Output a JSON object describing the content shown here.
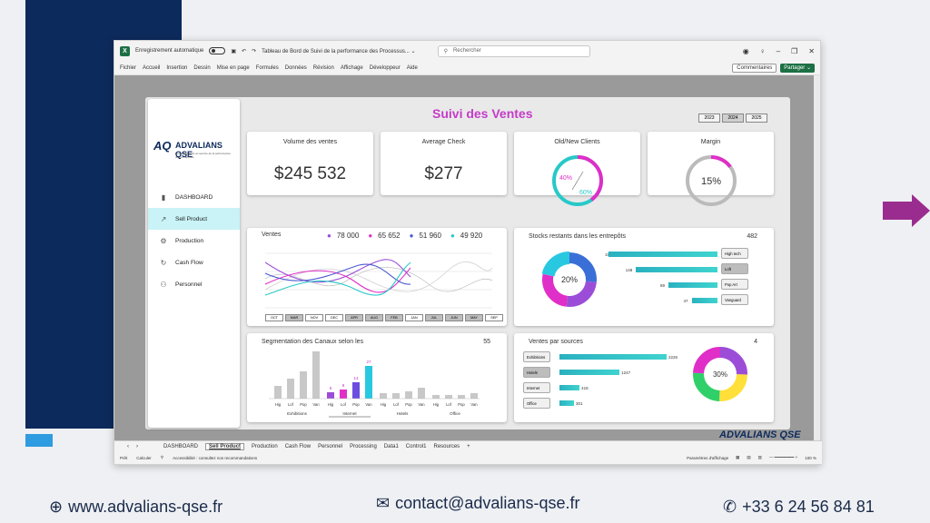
{
  "excel": {
    "autosave_label": "Enregistrement automatique",
    "file_title": "Tableau de Bord de Suivi de la performance des Processus... ⌄",
    "search_placeholder": "Rechercher",
    "menu": [
      "Fichier",
      "Accueil",
      "Insertion",
      "Dessin",
      "Mise en page",
      "Formules",
      "Données",
      "Révision",
      "Affichage",
      "Développeur",
      "Aide"
    ],
    "comments": "Commentaires",
    "share": "Partager ⌄",
    "sheet_tabs": [
      "DASHBOARD",
      "Sell Product",
      "Production",
      "Cash Flow",
      "Personnel",
      "Processing",
      "Data1",
      "Control1",
      "Resources"
    ],
    "active_tab": "Sell Product",
    "status": {
      "ready": "Prêt",
      "calc": "Calculer",
      "accessibility": "Accessibilité : consultez nos recommandations",
      "display_params": "Paramètres d'affichage",
      "zoom": "100 %"
    }
  },
  "dashboard": {
    "title": "Suivi des Ventes",
    "years": [
      "2023",
      "2024",
      "2025"
    ],
    "selected_year": "2024",
    "logo": {
      "mark": "AQ",
      "name": "ADVALIANS QSE",
      "tagline": "L'essentiel ESG au service de la performance des entreprises"
    },
    "nav": [
      {
        "label": "DASHBOARD",
        "icon": "bar-chart-icon"
      },
      {
        "label": "Sell Product",
        "icon": "trend-line-icon",
        "active": true
      },
      {
        "label": "Production",
        "icon": "gears-icon"
      },
      {
        "label": "Cash Flow",
        "icon": "cycle-icon"
      },
      {
        "label": "Personnel",
        "icon": "people-icon"
      }
    ],
    "kpis": {
      "volume": {
        "label": "Volume des ventes",
        "value": "$245 532"
      },
      "avg_check": {
        "label": "Average Check",
        "value": "$277"
      },
      "clients": {
        "label": "Old/New Clients",
        "old": "40%",
        "new": "60%",
        "old_pct": 40
      },
      "margin": {
        "label": "Margin",
        "value": "15%",
        "pct": 15
      }
    },
    "ventes": {
      "title": "Ventes",
      "legend": [
        {
          "value": "78 000",
          "color": "#9b4dd8"
        },
        {
          "value": "65 652",
          "color": "#e02ec8"
        },
        {
          "value": "51 960",
          "color": "#4a5bd0"
        },
        {
          "value": "49 920",
          "color": "#28c8c8"
        }
      ],
      "months": [
        "OCT",
        "MAR",
        "NOV",
        "DEC",
        "APR",
        "AUG",
        "FEB",
        "JAN",
        "JUL",
        "JUN",
        "MAY",
        "SEP"
      ]
    },
    "stocks": {
      "title": "Stocks restants dans les entrepôts",
      "total": "482",
      "donut_label": "20%",
      "bars": [
        {
          "value": "198",
          "label": "High tech",
          "n": 198,
          "dark": false
        },
        {
          "value": "148",
          "label": "Loft",
          "n": 148,
          "dark": true
        },
        {
          "value": "89",
          "label": "Pop Art",
          "n": 89,
          "dark": false
        },
        {
          "value": "47",
          "label": "Vanguard",
          "n": 47,
          "dark": false
        }
      ]
    },
    "segmentation": {
      "title": "Segmentation des Canaux selon les",
      "count": "55",
      "groups": [
        "Exhibitions",
        "Internet",
        "Hotels",
        "Office"
      ],
      "subcats": [
        "Hig",
        "Lof",
        "Pop",
        "Van"
      ],
      "highlight_values": [
        "6",
        "8",
        "14",
        "27"
      ]
    },
    "sources": {
      "title": "Ventes par sources",
      "count": "4",
      "donut_label": "30%",
      "bars": [
        {
          "label": "Exhibitions",
          "value": "2226",
          "n": 2226
        },
        {
          "label": "Hotels",
          "value": "1247",
          "n": 1247,
          "dark": true
        },
        {
          "label": "Internet",
          "value": "418",
          "n": 418
        },
        {
          "label": "Office",
          "value": "301",
          "n": 301
        }
      ]
    },
    "watermark": "ADVALIANS QSE"
  },
  "footer": {
    "website": "www.advalians-qse.fr",
    "email": "contact@advalians-qse.fr",
    "phone": "+33 6 24 56 84 81"
  },
  "colors": {
    "accent": "#c43cc8",
    "teal": "#2bb1c0",
    "excel_green": "#1d7044",
    "navy": "#0d2a5c"
  }
}
